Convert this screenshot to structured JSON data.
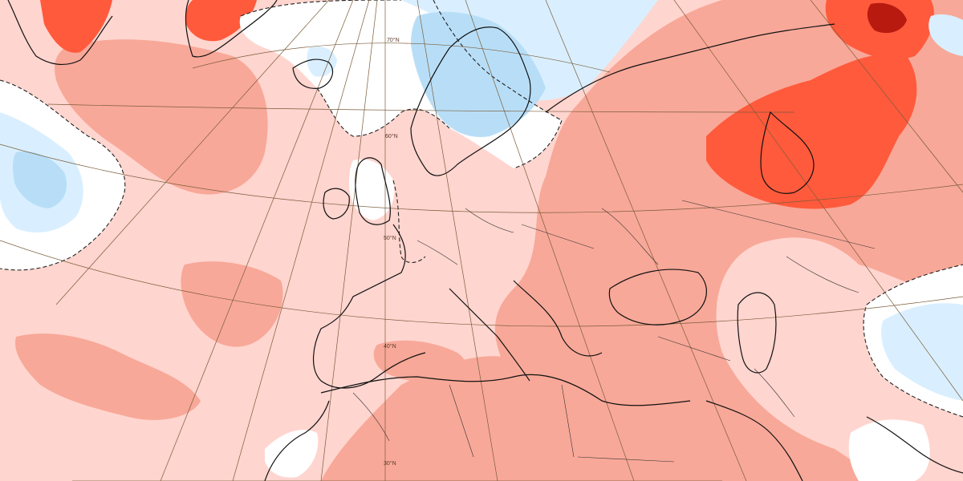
{
  "map": {
    "colors": {
      "slightly_warmer": "#ffd5cf",
      "warmer": "#f8a898",
      "much_warmer": "#ff5a3c",
      "extreme_warmer": "#e4271a",
      "darkest_warmer": "#b81a10",
      "near_normal": "#ffffff",
      "slightly_cooler": "#d9efff",
      "cooler": "#b8def7",
      "coastline": "#111111",
      "graticule": "#7a5c3a"
    },
    "latitude_labels": [
      "70°N",
      "60°N",
      "50°N",
      "40°N",
      "30°N"
    ]
  }
}
